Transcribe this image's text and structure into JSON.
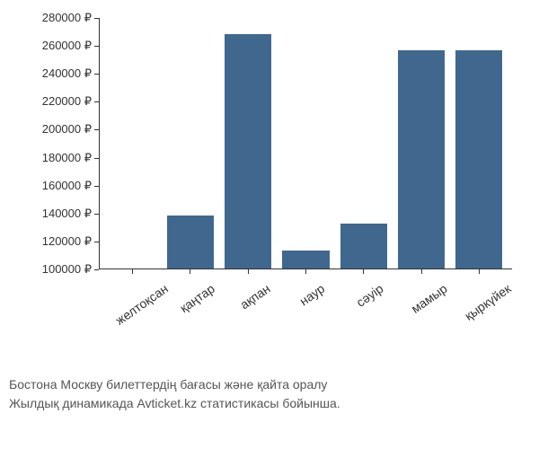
{
  "chart": {
    "type": "bar",
    "categories": [
      "желтоқсан",
      "қаңтар",
      "ақпан",
      "наур",
      "сәуір",
      "мамыр",
      "қыркүйек"
    ],
    "values": [
      99000,
      138000,
      268000,
      113000,
      132000,
      256000,
      256000
    ],
    "bar_color": "#40688f",
    "ymin": 100000,
    "ymax": 280000,
    "ytick_step": 20000,
    "currency_symbol": "₽",
    "y_tick_labels": [
      "100000 ₽",
      "120000 ₽",
      "140000 ₽",
      "160000 ₽",
      "180000 ₽",
      "200000 ₽",
      "220000 ₽",
      "240000 ₽",
      "260000 ₽",
      "280000 ₽"
    ],
    "background_color": "#ffffff",
    "axis_color": "#333333",
    "label_fontsize": 13,
    "x_label_rotation": -35,
    "bar_width": 0.7
  },
  "caption": {
    "line1": "Бостона Москву билеттердің бағасы және қайта оралу",
    "line2": "Жылдық динамикада Avticket.kz статистикасы бойынша."
  }
}
